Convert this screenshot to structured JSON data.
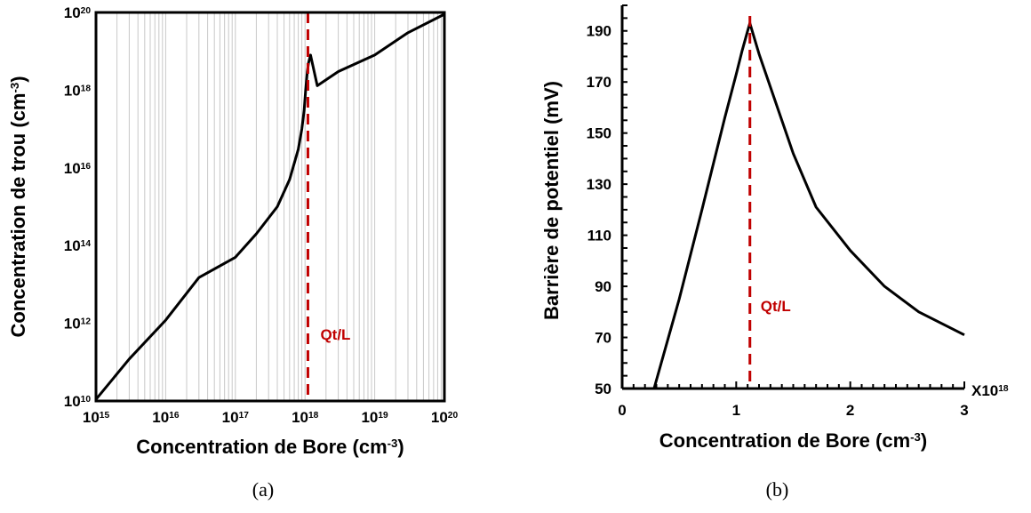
{
  "chart_data": [
    {
      "type": "line",
      "panel": "(a)",
      "xlabel": "Concentration de Bore (cm-3)",
      "ylabel": "Concentration de trou (cm-3)",
      "xscale": "log",
      "yscale": "log",
      "xlim": [
        1000000000000000.0,
        1e+20
      ],
      "ylim": [
        10000000000.0,
        1e+20
      ],
      "xticks": [
        "10^15",
        "10^16",
        "10^17",
        "10^18",
        "10^19",
        "10^20"
      ],
      "yticks": [
        "10^10",
        "10^12",
        "10^14",
        "10^16",
        "10^18",
        "10^20"
      ],
      "grid": "vertical minor log grid",
      "series": [
        {
          "color": "#000000",
          "x": [
            1000000000000000.0,
            3000000000000000.0,
            1e+16,
            3e+16,
            1e+17,
            2e+17,
            4e+17,
            6e+17,
            8e+17,
            9e+17,
            9.7e+17,
            1.02e+18,
            1.05e+18,
            1.08e+18,
            1.12e+18,
            1.2e+18,
            1.5e+18,
            3e+18,
            1e+19,
            3e+19,
            1e+20
          ],
          "y": [
            11000000000.0,
            120000000000.0,
            1200000000000.0,
            15000000000000.0,
            50000000000000.0,
            200000000000000.0,
            1000000000000000.0,
            5000000000000000.0,
            3e+16,
            1e+17,
            3e+17,
            1e+18,
            1.8e+18,
            3e+18,
            5e+18,
            8e+18,
            1.3e+18,
            3e+18,
            8e+18,
            3e+19,
            9e+19
          ]
        }
      ],
      "annotations": [
        {
          "text": "Qt/L",
          "type": "vline",
          "x": 1.1e+18,
          "color": "#c00000"
        }
      ]
    },
    {
      "type": "line",
      "panel": "(b)",
      "xlabel": "Concentration de Bore (cm-3)",
      "ylabel": "Barrière de potentiel (mV)",
      "x_multiplier": "X10^18",
      "xlim": [
        0,
        3
      ],
      "ylim": [
        50,
        200
      ],
      "xticks": [
        0,
        1,
        2,
        3
      ],
      "yticks": [
        50,
        70,
        90,
        110,
        130,
        150,
        170,
        190
      ],
      "grid": "none",
      "series": [
        {
          "color": "#000000",
          "x": [
            0.28,
            0.5,
            0.7,
            0.9,
            1.0,
            1.05,
            1.1,
            1.12,
            1.2,
            1.3,
            1.5,
            1.7,
            2.0,
            2.3,
            2.6,
            3.0
          ],
          "y": [
            50,
            85,
            120,
            156,
            173,
            182,
            190,
            193,
            181,
            168,
            142,
            121,
            104,
            90,
            80,
            71
          ]
        }
      ],
      "annotations": [
        {
          "text": "Qt/L",
          "type": "vline",
          "x": 1.12,
          "color": "#c00000"
        }
      ]
    }
  ],
  "captions": [
    "(a)",
    "(b)"
  ]
}
